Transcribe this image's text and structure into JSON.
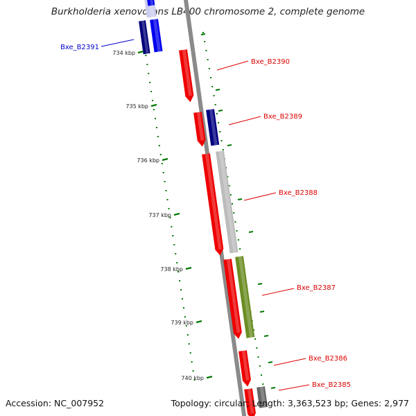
{
  "title": "Burkholderia xenovorans LB400 chromosome 2, complete genome",
  "footer": {
    "accession_label": "Accession:",
    "accession": "NC_007952",
    "topology_label": "Topology:",
    "topology": "circular;",
    "length_label": "Length:",
    "length": "3,363,523 bp;",
    "genes_label": "Genes:",
    "genes": "2,977"
  },
  "ticks": [
    "734 kbp",
    "735 kbp",
    "736 kbp",
    "737 kbp",
    "738 kbp",
    "739 kbp",
    "740 kbp"
  ],
  "genes": [
    {
      "label": "Bxe_B2391",
      "strand": "reverse",
      "color": "#0000cc"
    },
    {
      "label": "Bxe_B2390",
      "strand": "forward",
      "color": "#dd0000"
    },
    {
      "label": "Bxe_B2389",
      "strand": "forward",
      "color": "#dd0000"
    },
    {
      "label": "Bxe_B2388",
      "strand": "forward",
      "color": "#dd0000"
    },
    {
      "label": "Bxe_B2387",
      "strand": "forward",
      "color": "#dd0000"
    },
    {
      "label": "Bxe_B2386",
      "strand": "forward",
      "color": "#dd0000"
    },
    {
      "label": "Bxe_B2385",
      "strand": "forward",
      "color": "#dd0000"
    }
  ],
  "colors": {
    "backbone": "#888888",
    "forward_cds": "#ff0000",
    "reverse_cds": "#0000ff",
    "gc_skew": "#6b8e23",
    "feature_gray": "#bbbbbb",
    "tick": "#007700"
  }
}
